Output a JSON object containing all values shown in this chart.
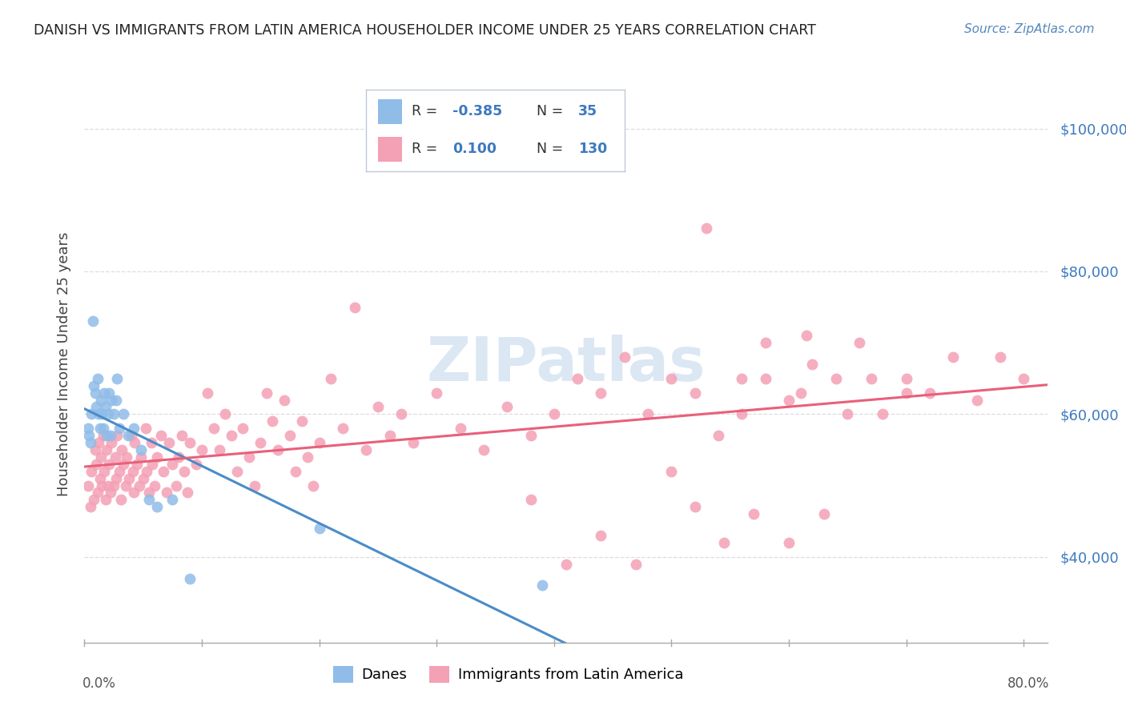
{
  "title": "DANISH VS IMMIGRANTS FROM LATIN AMERICA HOUSEHOLDER INCOME UNDER 25 YEARS CORRELATION CHART",
  "source": "Source: ZipAtlas.com",
  "ylabel": "Householder Income Under 25 years",
  "xlim": [
    0.0,
    0.82
  ],
  "ylim": [
    28000,
    106000
  ],
  "yticks": [
    40000,
    60000,
    80000,
    100000
  ],
  "ytick_labels": [
    "$40,000",
    "$60,000",
    "$80,000",
    "$100,000"
  ],
  "danes_color": "#90bce8",
  "latin_color": "#f4a0b5",
  "danes_line_color": "#4a8cc8",
  "latin_line_color": "#e8607a",
  "dashed_line_color": "#a0c0e0",
  "background_color": "#ffffff",
  "grid_color": "#dddddd",
  "danes_x": [
    0.003,
    0.004,
    0.005,
    0.006,
    0.007,
    0.008,
    0.009,
    0.01,
    0.011,
    0.012,
    0.013,
    0.014,
    0.015,
    0.016,
    0.017,
    0.018,
    0.019,
    0.02,
    0.021,
    0.022,
    0.023,
    0.025,
    0.027,
    0.028,
    0.03,
    0.033,
    0.037,
    0.042,
    0.048,
    0.055,
    0.062,
    0.075,
    0.09,
    0.2,
    0.39
  ],
  "danes_y": [
    58000,
    57000,
    56000,
    60000,
    73000,
    64000,
    63000,
    61000,
    65000,
    60000,
    58000,
    62000,
    60000,
    58000,
    63000,
    61000,
    57000,
    60000,
    63000,
    57000,
    62000,
    60000,
    62000,
    65000,
    58000,
    60000,
    57000,
    58000,
    55000,
    48000,
    47000,
    48000,
    37000,
    44000,
    36000
  ],
  "latin_x": [
    0.003,
    0.005,
    0.006,
    0.008,
    0.009,
    0.01,
    0.011,
    0.012,
    0.013,
    0.014,
    0.015,
    0.016,
    0.017,
    0.018,
    0.019,
    0.02,
    0.021,
    0.022,
    0.023,
    0.025,
    0.026,
    0.027,
    0.028,
    0.03,
    0.031,
    0.032,
    0.033,
    0.035,
    0.036,
    0.038,
    0.04,
    0.041,
    0.042,
    0.043,
    0.045,
    0.047,
    0.048,
    0.05,
    0.052,
    0.053,
    0.055,
    0.057,
    0.058,
    0.06,
    0.062,
    0.065,
    0.067,
    0.07,
    0.072,
    0.075,
    0.078,
    0.08,
    0.083,
    0.085,
    0.088,
    0.09,
    0.095,
    0.1,
    0.105,
    0.11,
    0.115,
    0.12,
    0.125,
    0.13,
    0.135,
    0.14,
    0.145,
    0.15,
    0.155,
    0.16,
    0.165,
    0.17,
    0.175,
    0.18,
    0.185,
    0.19,
    0.195,
    0.2,
    0.21,
    0.22,
    0.23,
    0.24,
    0.25,
    0.26,
    0.27,
    0.28,
    0.3,
    0.32,
    0.34,
    0.36,
    0.38,
    0.4,
    0.42,
    0.44,
    0.46,
    0.48,
    0.5,
    0.52,
    0.54,
    0.56,
    0.58,
    0.6,
    0.62,
    0.64,
    0.66,
    0.68,
    0.7,
    0.72,
    0.74,
    0.76,
    0.78,
    0.8,
    0.615,
    0.65,
    0.67,
    0.7,
    0.53,
    0.56,
    0.58,
    0.61,
    0.38,
    0.41,
    0.44,
    0.47,
    0.5,
    0.52,
    0.545,
    0.57,
    0.6,
    0.63
  ],
  "latin_y": [
    50000,
    47000,
    52000,
    48000,
    55000,
    53000,
    49000,
    56000,
    51000,
    54000,
    50000,
    57000,
    52000,
    48000,
    55000,
    50000,
    53000,
    49000,
    56000,
    50000,
    54000,
    51000,
    57000,
    52000,
    48000,
    55000,
    53000,
    50000,
    54000,
    51000,
    57000,
    52000,
    49000,
    56000,
    53000,
    50000,
    54000,
    51000,
    58000,
    52000,
    49000,
    56000,
    53000,
    50000,
    54000,
    57000,
    52000,
    49000,
    56000,
    53000,
    50000,
    54000,
    57000,
    52000,
    49000,
    56000,
    53000,
    55000,
    63000,
    58000,
    55000,
    60000,
    57000,
    52000,
    58000,
    54000,
    50000,
    56000,
    63000,
    59000,
    55000,
    62000,
    57000,
    52000,
    59000,
    54000,
    50000,
    56000,
    65000,
    58000,
    75000,
    55000,
    61000,
    57000,
    60000,
    56000,
    63000,
    58000,
    55000,
    61000,
    57000,
    60000,
    65000,
    63000,
    68000,
    60000,
    65000,
    63000,
    57000,
    60000,
    65000,
    62000,
    67000,
    65000,
    70000,
    60000,
    65000,
    63000,
    68000,
    62000,
    68000,
    65000,
    71000,
    60000,
    65000,
    63000,
    86000,
    65000,
    70000,
    63000,
    48000,
    39000,
    43000,
    39000,
    52000,
    47000,
    42000,
    46000,
    42000,
    46000
  ]
}
